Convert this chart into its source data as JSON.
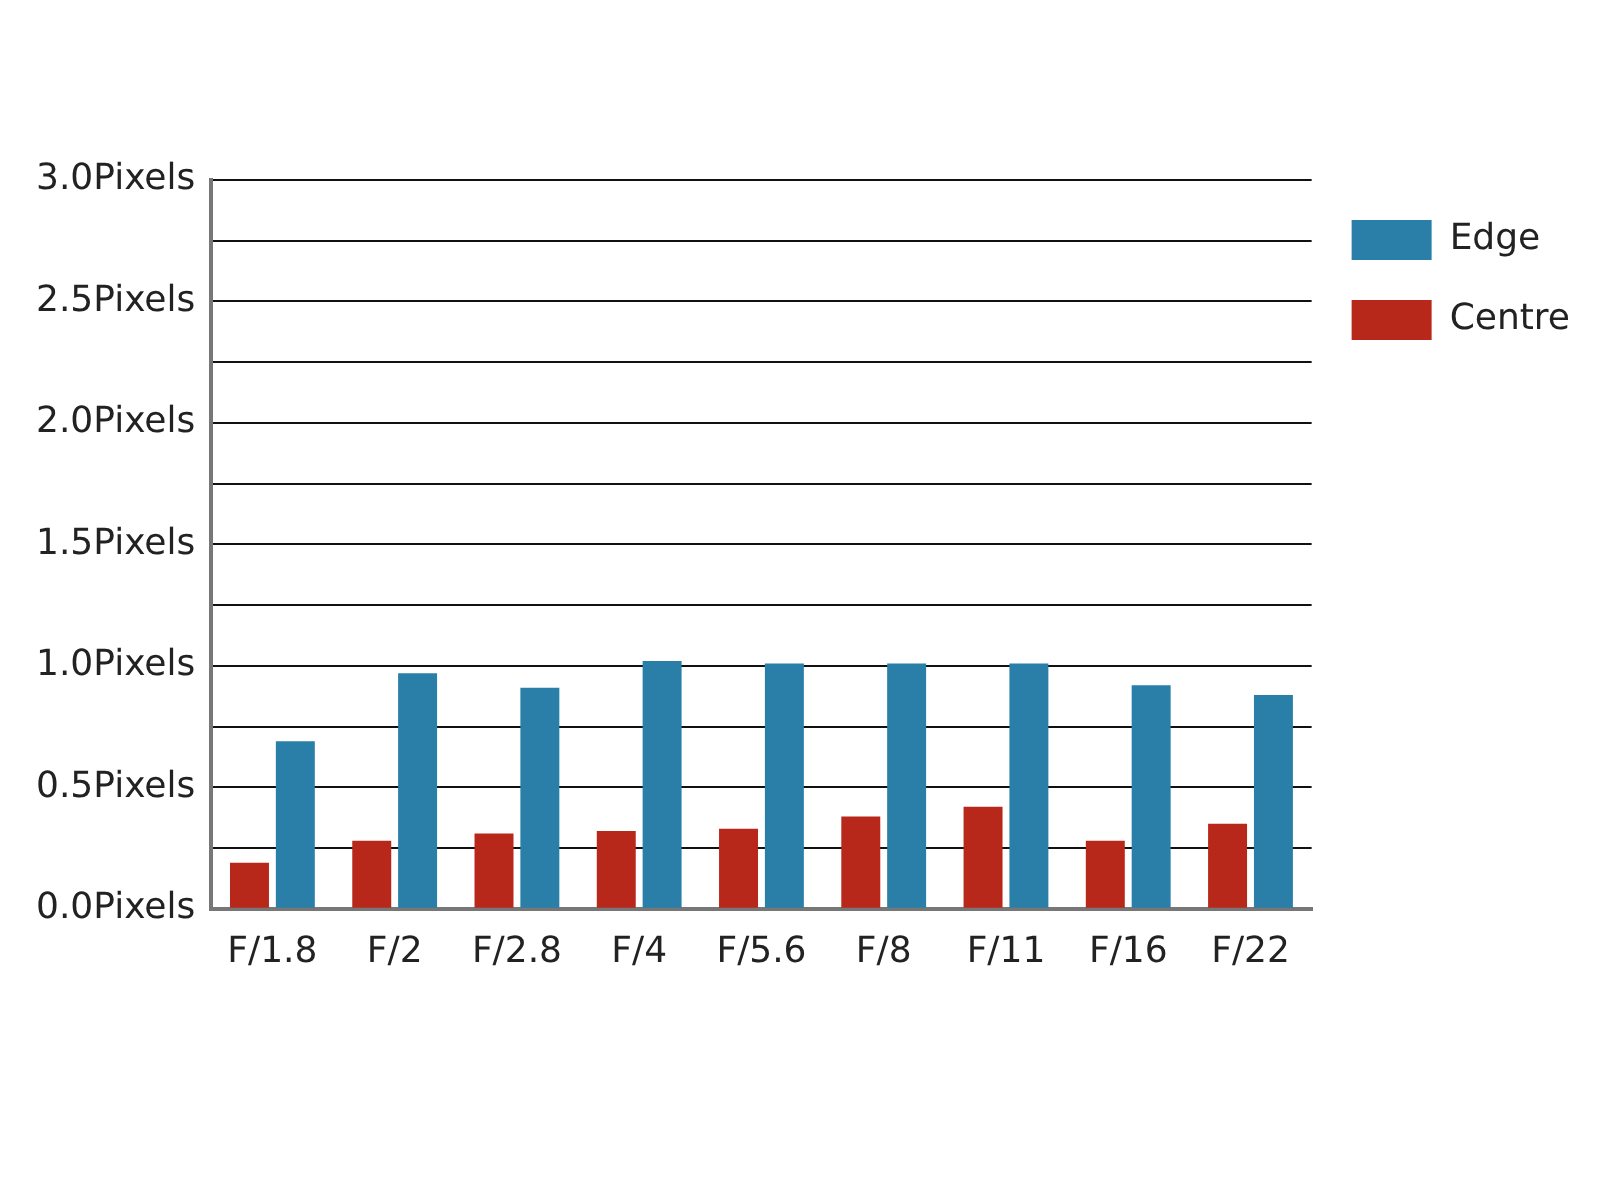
{
  "chart_data": {
    "type": "bar",
    "categories": [
      "F/1.8",
      "F/2",
      "F/2.8",
      "F/4",
      "F/5.6",
      "F/8",
      "F/11",
      "F/16",
      "F/22"
    ],
    "series": [
      {
        "name": "Centre",
        "color": "#b8281a",
        "values": [
          0.19,
          0.28,
          0.31,
          0.32,
          0.33,
          0.38,
          0.42,
          0.28,
          0.35
        ]
      },
      {
        "name": "Edge",
        "color": "#2a7fa8",
        "values": [
          0.69,
          0.97,
          0.91,
          1.02,
          1.01,
          1.01,
          1.01,
          0.92,
          0.88
        ]
      }
    ],
    "ylim": [
      0,
      3
    ],
    "yticks": [
      {
        "value": 0,
        "label": "0.0Pixels"
      },
      {
        "value": 0.25,
        "label": null
      },
      {
        "value": 0.5,
        "label": "0.5Pixels"
      },
      {
        "value": 0.75,
        "label": null
      },
      {
        "value": 1,
        "label": "1.0Pixels"
      },
      {
        "value": 1.25,
        "label": null
      },
      {
        "value": 1.5,
        "label": "1.5Pixels"
      },
      {
        "value": 1.75,
        "label": null
      },
      {
        "value": 2,
        "label": "2.0Pixels"
      },
      {
        "value": 2.25,
        "label": null
      },
      {
        "value": 2.5,
        "label": "2.5Pixels"
      },
      {
        "value": 2.75,
        "label": null
      },
      {
        "value": 3,
        "label": "3.0Pixels"
      }
    ],
    "grid": "y",
    "legend": "top right"
  }
}
